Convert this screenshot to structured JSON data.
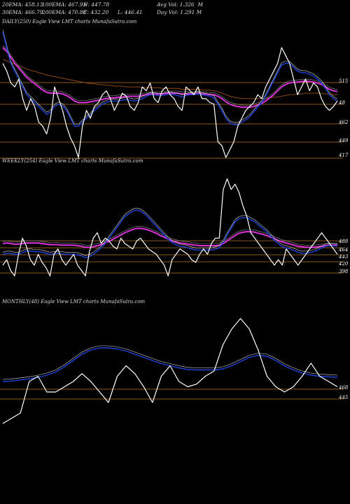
{
  "header": {
    "row1": [
      "20EMA: 458.13",
      "100EMA: 467.93",
      "H: 447.78",
      "Avg Vol: 1.326  M"
    ],
    "row2": [
      "30EMA: 466.79",
      "200EMA: 470.88",
      "C: 432.20",
      "L: 446.41",
      "Day Vol: 1.291 M"
    ]
  },
  "colors": {
    "background": "#000000",
    "price": "#ffffff",
    "ema_blue": "#1e44e0",
    "ema_magenta": "#dd33dd",
    "ema_brown": "#8b4513",
    "level_line": "#b8742a",
    "label": "#ffffff"
  },
  "chart_data": [
    {
      "type": "line",
      "title": "DAILY(250) Eagle   View  LMT charts MunafaSutra.com",
      "levels": [
        "515",
        "48",
        "462",
        "449",
        "417"
      ],
      "series": [
        {
          "name": "price",
          "values": [
            500,
            490,
            475,
            470,
            480,
            455,
            440,
            455,
            445,
            425,
            420,
            410,
            430,
            470,
            455,
            440,
            420,
            405,
            395,
            380,
            420,
            440,
            430,
            445,
            450,
            460,
            465,
            455,
            440,
            450,
            462,
            458,
            445,
            440,
            450,
            470,
            465,
            475,
            455,
            450,
            465,
            470,
            460,
            455,
            445,
            440,
            470,
            465,
            460,
            470,
            455,
            455,
            450,
            448,
            400,
            395,
            380,
            390,
            400,
            420,
            430,
            440,
            445,
            450,
            460,
            455,
            470,
            480,
            490,
            500,
            520,
            510,
            500,
            480,
            460,
            470,
            480,
            465,
            475,
            470,
            455,
            445,
            440,
            445,
            452
          ]
        },
        {
          "name": "ema_fast",
          "values": [
            540,
            520,
            500,
            490,
            480,
            470,
            460,
            455,
            450,
            445,
            440,
            435,
            438,
            445,
            448,
            446,
            440,
            430,
            420,
            420,
            425,
            430,
            434,
            440,
            444,
            448,
            450,
            452,
            452,
            452,
            453,
            454,
            453,
            452,
            453,
            455,
            458,
            460,
            460,
            459,
            459,
            460,
            461,
            460,
            459,
            457,
            459,
            460,
            460,
            461,
            460,
            459,
            458,
            456,
            448,
            440,
            430,
            424,
            422,
            422,
            425,
            428,
            432,
            438,
            444,
            450,
            458,
            468,
            478,
            488,
            498,
            500,
            500,
            495,
            490,
            488,
            488,
            486,
            484,
            480,
            475,
            468,
            460,
            455,
            452
          ]
        },
        {
          "name": "ema_slow",
          "values": [
            520,
            515,
            508,
            500,
            494,
            488,
            482,
            478,
            474,
            470,
            466,
            463,
            462,
            462,
            462,
            461,
            459,
            456,
            452,
            450,
            450,
            450,
            451,
            452,
            453,
            454,
            455,
            456,
            456,
            457,
            457,
            458,
            458,
            458,
            458,
            459,
            460,
            461,
            461,
            461,
            461,
            462,
            462,
            462,
            462,
            461,
            461,
            461,
            461,
            462,
            461,
            461,
            460,
            460,
            458,
            455,
            451,
            448,
            446,
            445,
            444,
            444,
            444,
            445,
            447,
            449,
            452,
            456,
            460,
            465,
            470,
            473,
            475,
            476,
            476,
            477,
            477,
            477,
            476,
            475,
            473,
            470,
            467,
            465,
            464
          ]
        },
        {
          "name": "ema_200",
          "values": [
            505,
            503,
            501,
            499,
            497,
            495,
            493,
            491,
            490,
            488,
            487,
            485,
            484,
            483,
            482,
            481,
            480,
            479,
            478,
            477,
            476,
            475,
            474,
            474,
            473,
            473,
            472,
            472,
            471,
            471,
            471,
            470,
            470,
            470,
            470,
            469,
            469,
            469,
            469,
            469,
            468,
            468,
            468,
            468,
            468,
            467,
            467,
            467,
            467,
            467,
            466,
            466,
            466,
            465,
            464,
            462,
            460,
            458,
            457,
            456,
            455,
            455,
            455,
            455,
            455,
            455,
            456,
            456,
            457,
            457,
            458,
            459,
            460,
            460,
            461,
            461,
            462,
            462,
            462,
            462,
            462,
            461,
            461,
            460,
            460
          ]
        }
      ]
    },
    {
      "type": "line",
      "title": "WEEKLY(254) Eagle   View  LMT charts MunafaSutra.com",
      "levels": [
        "488",
        "464",
        "443",
        "420",
        "398"
      ],
      "series": [
        {
          "name": "price",
          "values": [
            420,
            430,
            410,
            400,
            440,
            470,
            455,
            430,
            420,
            440,
            425,
            415,
            400,
            440,
            450,
            430,
            420,
            430,
            440,
            420,
            410,
            400,
            445,
            470,
            480,
            460,
            470,
            465,
            455,
            450,
            470,
            460,
            455,
            450,
            465,
            470,
            460,
            450,
            445,
            440,
            430,
            420,
            400,
            430,
            440,
            450,
            445,
            440,
            430,
            425,
            440,
            450,
            440,
            460,
            470,
            470,
            560,
            580,
            560,
            570,
            555,
            530,
            510,
            480,
            470,
            460,
            450,
            440,
            430,
            420,
            430,
            420,
            450,
            440,
            430,
            420,
            430,
            440,
            450,
            460,
            470,
            480,
            470,
            460,
            450,
            440
          ]
        },
        {
          "name": "ema_fast",
          "values": [
            440,
            442,
            442,
            440,
            440,
            443,
            446,
            446,
            445,
            445,
            444,
            442,
            440,
            441,
            442,
            441,
            440,
            440,
            440,
            439,
            437,
            434,
            436,
            440,
            446,
            452,
            460,
            470,
            480,
            490,
            500,
            510,
            515,
            520,
            522,
            520,
            515,
            508,
            500,
            492,
            484,
            476,
            468,
            462,
            458,
            455,
            454,
            452,
            450,
            448,
            448,
            448,
            448,
            448,
            450,
            452,
            462,
            476,
            488,
            500,
            506,
            508,
            508,
            504,
            500,
            494,
            488,
            482,
            474,
            466,
            460,
            454,
            452,
            450,
            447,
            444,
            442,
            442,
            443,
            445,
            448,
            452,
            455,
            456,
            456,
            455
          ]
        },
        {
          "name": "ema_slow",
          "values": [
            460,
            461,
            460,
            459,
            459,
            460,
            461,
            461,
            461,
            461,
            460,
            459,
            458,
            458,
            458,
            457,
            457,
            457,
            457,
            456,
            455,
            453,
            453,
            454,
            456,
            458,
            461,
            464,
            468,
            472,
            476,
            480,
            483,
            486,
            488,
            488,
            487,
            485,
            482,
            479,
            475,
            472,
            468,
            465,
            463,
            461,
            460,
            459,
            458,
            457,
            456,
            456,
            456,
            456,
            456,
            457,
            460,
            465,
            470,
            475,
            479,
            481,
            482,
            482,
            481,
            479,
            477,
            475,
            472,
            469,
            466,
            463,
            461,
            459,
            457,
            455,
            454,
            453,
            453,
            453,
            454,
            455,
            456,
            457,
            457,
            457
          ]
        }
      ]
    },
    {
      "type": "line",
      "title": "MONTHLY(48) Eagle   View  LMT charts MunafaSutra.com",
      "levels": [
        "468",
        "445"
      ],
      "series": [
        {
          "name": "price",
          "values": [
            360,
            370,
            380,
            440,
            450,
            420,
            420,
            430,
            440,
            455,
            440,
            420,
            400,
            450,
            470,
            455,
            430,
            400,
            450,
            470,
            440,
            430,
            435,
            450,
            460,
            510,
            540,
            560,
            540,
            500,
            450,
            430,
            420,
            430,
            450,
            475,
            450,
            440,
            430
          ]
        },
        {
          "name": "ema_fast",
          "values": [
            440,
            441,
            443,
            445,
            448,
            452,
            458,
            468,
            480,
            492,
            500,
            504,
            504,
            502,
            498,
            492,
            486,
            480,
            474,
            470,
            466,
            463,
            462,
            462,
            462,
            464,
            470,
            478,
            486,
            490,
            488,
            480,
            470,
            462,
            456,
            452,
            450,
            449,
            448
          ]
        }
      ]
    }
  ]
}
